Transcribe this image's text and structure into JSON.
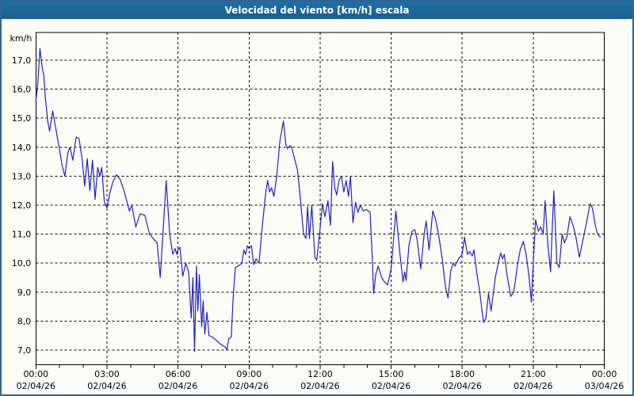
{
  "window": {
    "title": "Velocidad del viento [km/h] escala"
  },
  "colors": {
    "frame": "#2e6496",
    "titlebar": "#1d689a",
    "titlebar_text": "#ffffff",
    "background": "#fcfdf7",
    "grid": "#000000",
    "axis": "#000000",
    "labels": "#000000",
    "line": "#2222bb"
  },
  "chart_data": {
    "type": "line",
    "title": "Velocidad del viento [km/h] escala",
    "ylabel": "km/h",
    "y_axis": {
      "unit_label": "km/h",
      "tick_labels": [
        "17,0",
        "16,0",
        "15,0",
        "14,0",
        "13,0",
        "12,0",
        "11,0",
        "10,0",
        "9,0",
        "8,0",
        "7,0"
      ],
      "tick_values": [
        17,
        16,
        15,
        14,
        13,
        12,
        11,
        10,
        9,
        8,
        7
      ],
      "range": [
        6.5,
        18.0
      ],
      "decimal_separator": ","
    },
    "x_axis": {
      "range_hours": [
        0,
        24
      ],
      "major_tick_interval_hours": 3,
      "minor_tick_interval_hours": 1,
      "tick_labels": [
        {
          "time": "00:00",
          "date": "02/04/26",
          "hour": 0
        },
        {
          "time": "03:00",
          "date": "02/04/26",
          "hour": 3
        },
        {
          "time": "06:00",
          "date": "02/04/26",
          "hour": 6
        },
        {
          "time": "09:00",
          "date": "02/04/26",
          "hour": 9
        },
        {
          "time": "12:00",
          "date": "02/04/26",
          "hour": 12
        },
        {
          "time": "15:00",
          "date": "02/04/26",
          "hour": 15
        },
        {
          "time": "18:00",
          "date": "02/04/26",
          "hour": 18
        },
        {
          "time": "21:00",
          "date": "02/04/26",
          "hour": 21
        },
        {
          "time": "00:00",
          "date": "03/04/26",
          "hour": 24
        }
      ]
    },
    "grid": {
      "horizontal": "dashed",
      "vertical": "dashed"
    },
    "legend": "none",
    "series": [
      {
        "name": "Velocidad del viento [km/h]",
        "color": "#2222bb",
        "points_hours_kmh": [
          [
            0,
            15.6
          ],
          [
            0.08,
            16.2
          ],
          [
            0.17,
            17.4
          ],
          [
            0.27,
            16.7
          ],
          [
            0.33,
            16.5
          ],
          [
            0.4,
            15.7
          ],
          [
            0.5,
            14.9
          ],
          [
            0.58,
            14.55
          ],
          [
            0.71,
            15.25
          ],
          [
            0.85,
            14.6
          ],
          [
            1,
            13.9
          ],
          [
            1.1,
            13.4
          ],
          [
            1.22,
            13.0
          ],
          [
            1.35,
            13.8
          ],
          [
            1.44,
            14.0
          ],
          [
            1.56,
            13.55
          ],
          [
            1.7,
            14.35
          ],
          [
            1.82,
            14.3
          ],
          [
            1.95,
            13.6
          ],
          [
            2.06,
            12.65
          ],
          [
            2.17,
            13.6
          ],
          [
            2.28,
            12.5
          ],
          [
            2.39,
            13.55
          ],
          [
            2.5,
            12.2
          ],
          [
            2.61,
            13.3
          ],
          [
            2.7,
            13.0
          ],
          [
            2.78,
            13.3
          ],
          [
            2.89,
            12.1
          ],
          [
            3,
            11.9
          ],
          [
            3.12,
            12.4
          ],
          [
            3.25,
            12.8
          ],
          [
            3.4,
            13.05
          ],
          [
            3.55,
            12.9
          ],
          [
            3.7,
            12.55
          ],
          [
            3.85,
            12.1
          ],
          [
            3.95,
            11.8
          ],
          [
            4.05,
            12.0
          ],
          [
            4.22,
            11.25
          ],
          [
            4.4,
            11.7
          ],
          [
            4.6,
            11.65
          ],
          [
            4.8,
            11.0
          ],
          [
            5,
            10.8
          ],
          [
            5.12,
            10.7
          ],
          [
            5.25,
            9.5
          ],
          [
            5.5,
            12.85
          ],
          [
            5.65,
            11.0
          ],
          [
            5.78,
            10.3
          ],
          [
            5.88,
            10.5
          ],
          [
            5.95,
            10.3
          ],
          [
            6,
            10.45
          ],
          [
            6.08,
            10.55
          ],
          [
            6.2,
            9.55
          ],
          [
            6.33,
            10.0
          ],
          [
            6.45,
            9.7
          ],
          [
            6.56,
            8.1
          ],
          [
            6.63,
            9.5
          ],
          [
            6.7,
            6.95
          ],
          [
            6.78,
            9.9
          ],
          [
            6.84,
            8.35
          ],
          [
            6.9,
            9.6
          ],
          [
            7,
            7.8
          ],
          [
            7.06,
            8.7
          ],
          [
            7.13,
            7.55
          ],
          [
            7.22,
            8.3
          ],
          [
            7.31,
            7.5
          ],
          [
            7.45,
            7.45
          ],
          [
            7.6,
            7.35
          ],
          [
            7.8,
            7.2
          ],
          [
            8,
            7.1
          ],
          [
            8.06,
            7.0
          ],
          [
            8.15,
            7.4
          ],
          [
            8.25,
            7.45
          ],
          [
            8.33,
            8.8
          ],
          [
            8.42,
            9.85
          ],
          [
            8.55,
            9.9
          ],
          [
            8.7,
            10.0
          ],
          [
            8.78,
            10.45
          ],
          [
            8.85,
            10.3
          ],
          [
            8.93,
            10.6
          ],
          [
            9,
            10.5
          ],
          [
            9.1,
            10.6
          ],
          [
            9.2,
            9.95
          ],
          [
            9.3,
            10.15
          ],
          [
            9.42,
            10.0
          ],
          [
            9.55,
            11.2
          ],
          [
            9.7,
            12.4
          ],
          [
            9.78,
            12.85
          ],
          [
            9.87,
            12.45
          ],
          [
            9.95,
            12.6
          ],
          [
            10.05,
            12.3
          ],
          [
            10.17,
            13.0
          ],
          [
            10.3,
            14.2
          ],
          [
            10.45,
            14.9
          ],
          [
            10.55,
            14.1
          ],
          [
            10.62,
            13.95
          ],
          [
            10.72,
            14.05
          ],
          [
            10.8,
            14.0
          ],
          [
            10.92,
            13.6
          ],
          [
            11.05,
            13.2
          ],
          [
            11.17,
            12.2
          ],
          [
            11.3,
            11.0
          ],
          [
            11.4,
            10.85
          ],
          [
            11.47,
            11.95
          ],
          [
            11.55,
            10.85
          ],
          [
            11.65,
            12.0
          ],
          [
            11.78,
            10.2
          ],
          [
            11.86,
            10.1
          ],
          [
            12,
            11.2
          ],
          [
            12.1,
            12.05
          ],
          [
            12.2,
            11.6
          ],
          [
            12.33,
            12.15
          ],
          [
            12.44,
            11.3
          ],
          [
            12.53,
            13.5
          ],
          [
            12.62,
            12.6
          ],
          [
            12.7,
            12.35
          ],
          [
            12.8,
            12.85
          ],
          [
            12.9,
            13.0
          ],
          [
            13,
            12.45
          ],
          [
            13.1,
            12.85
          ],
          [
            13.2,
            12.3
          ],
          [
            13.28,
            13.0
          ],
          [
            13.39,
            11.4
          ],
          [
            13.5,
            12.1
          ],
          [
            13.6,
            11.75
          ],
          [
            13.7,
            12.0
          ],
          [
            13.82,
            11.8
          ],
          [
            13.95,
            11.85
          ],
          [
            14.11,
            11.75
          ],
          [
            14.2,
            10.3
          ],
          [
            14.26,
            8.95
          ],
          [
            14.35,
            9.6
          ],
          [
            14.45,
            9.9
          ],
          [
            14.6,
            9.5
          ],
          [
            14.72,
            9.35
          ],
          [
            14.85,
            9.25
          ],
          [
            15,
            9.8
          ],
          [
            15.2,
            11.8
          ],
          [
            15.35,
            10.5
          ],
          [
            15.5,
            9.35
          ],
          [
            15.57,
            9.7
          ],
          [
            15.63,
            9.4
          ],
          [
            15.75,
            10.6
          ],
          [
            15.88,
            11.1
          ],
          [
            16,
            11.15
          ],
          [
            16.1,
            10.8
          ],
          [
            16.25,
            9.8
          ],
          [
            16.4,
            11.05
          ],
          [
            16.48,
            11.45
          ],
          [
            16.6,
            10.45
          ],
          [
            16.76,
            11.8
          ],
          [
            16.88,
            11.5
          ],
          [
            17,
            11.0
          ],
          [
            17.15,
            10.2
          ],
          [
            17.3,
            9.15
          ],
          [
            17.4,
            8.8
          ],
          [
            17.52,
            9.75
          ],
          [
            17.62,
            10.0
          ],
          [
            17.7,
            9.9
          ],
          [
            17.85,
            10.15
          ],
          [
            18,
            10.3
          ],
          [
            18.1,
            10.9
          ],
          [
            18.22,
            10.3
          ],
          [
            18.32,
            10.4
          ],
          [
            18.42,
            10.25
          ],
          [
            18.5,
            10.45
          ],
          [
            18.62,
            9.65
          ],
          [
            18.75,
            8.95
          ],
          [
            18.9,
            7.95
          ],
          [
            19,
            8.1
          ],
          [
            19.11,
            8.95
          ],
          [
            19.22,
            8.35
          ],
          [
            19.4,
            9.5
          ],
          [
            19.55,
            10.1
          ],
          [
            19.63,
            10.35
          ],
          [
            19.7,
            10.15
          ],
          [
            19.78,
            10.3
          ],
          [
            19.9,
            9.55
          ],
          [
            20.05,
            8.85
          ],
          [
            20.18,
            9.0
          ],
          [
            20.33,
            9.9
          ],
          [
            20.45,
            10.45
          ],
          [
            20.58,
            10.75
          ],
          [
            20.7,
            10.3
          ],
          [
            20.82,
            9.55
          ],
          [
            20.92,
            8.65
          ],
          [
            21,
            10.0
          ],
          [
            21.1,
            11.5
          ],
          [
            21.22,
            11.1
          ],
          [
            21.32,
            11.25
          ],
          [
            21.42,
            11.0
          ],
          [
            21.5,
            12.15
          ],
          [
            21.62,
            10.6
          ],
          [
            21.73,
            9.7
          ],
          [
            21.87,
            12.5
          ],
          [
            22,
            10.0
          ],
          [
            22.1,
            9.85
          ],
          [
            22.22,
            11.0
          ],
          [
            22.32,
            10.7
          ],
          [
            22.42,
            10.9
          ],
          [
            22.55,
            11.6
          ],
          [
            22.68,
            11.3
          ],
          [
            22.78,
            11.0
          ],
          [
            22.95,
            10.2
          ],
          [
            23.1,
            10.8
          ],
          [
            23.25,
            11.4
          ],
          [
            23.4,
            12.05
          ],
          [
            23.5,
            11.9
          ],
          [
            23.62,
            11.3
          ],
          [
            23.72,
            11.0
          ],
          [
            23.83,
            10.9
          ]
        ]
      }
    ]
  }
}
